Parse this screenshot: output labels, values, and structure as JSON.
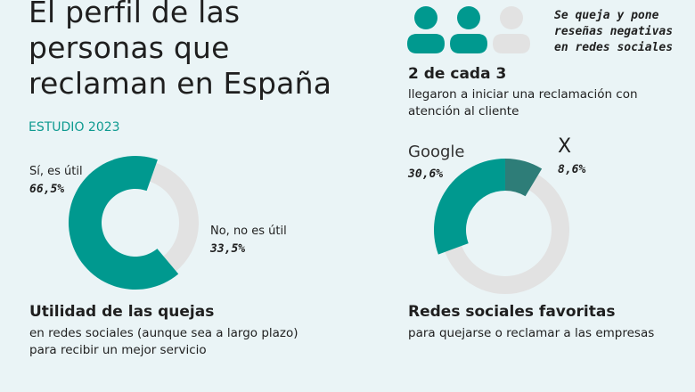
{
  "title": "El perfil de las personas que reclaman en España",
  "study": "ESTUDIO 2023",
  "people": {
    "highlighted": 2,
    "total": 3,
    "note": "Se queja y pone reseñas negativas en redes sociales",
    "headline": "2 de cada 3",
    "text": "llegaron a iniciar una reclamación con atención al cliente"
  },
  "colors": {
    "teal": "#00998f",
    "dark_teal": "#2e7d78",
    "gray": "#e2e2e2",
    "background": "#eaf4f6"
  },
  "chart_data": [
    {
      "type": "pie",
      "title": "Utilidad de las quejas",
      "subtitle": "en redes sociales (aunque sea a largo plazo) para recibir un mejor servicio",
      "slices": [
        {
          "label": "Sí, es útil",
          "value": 66.5,
          "display": "66,5%"
        },
        {
          "label": "No, no es útil",
          "value": 33.5,
          "display": "33,5%"
        }
      ]
    },
    {
      "type": "pie",
      "title": "Redes sociales favoritas",
      "subtitle": "para quejarse o reclamar a las empresas",
      "slices": [
        {
          "label": "Google",
          "value": 30.6,
          "display": "30,6%"
        },
        {
          "label": "X",
          "value": 8.6,
          "display": "8,6%"
        }
      ]
    }
  ]
}
